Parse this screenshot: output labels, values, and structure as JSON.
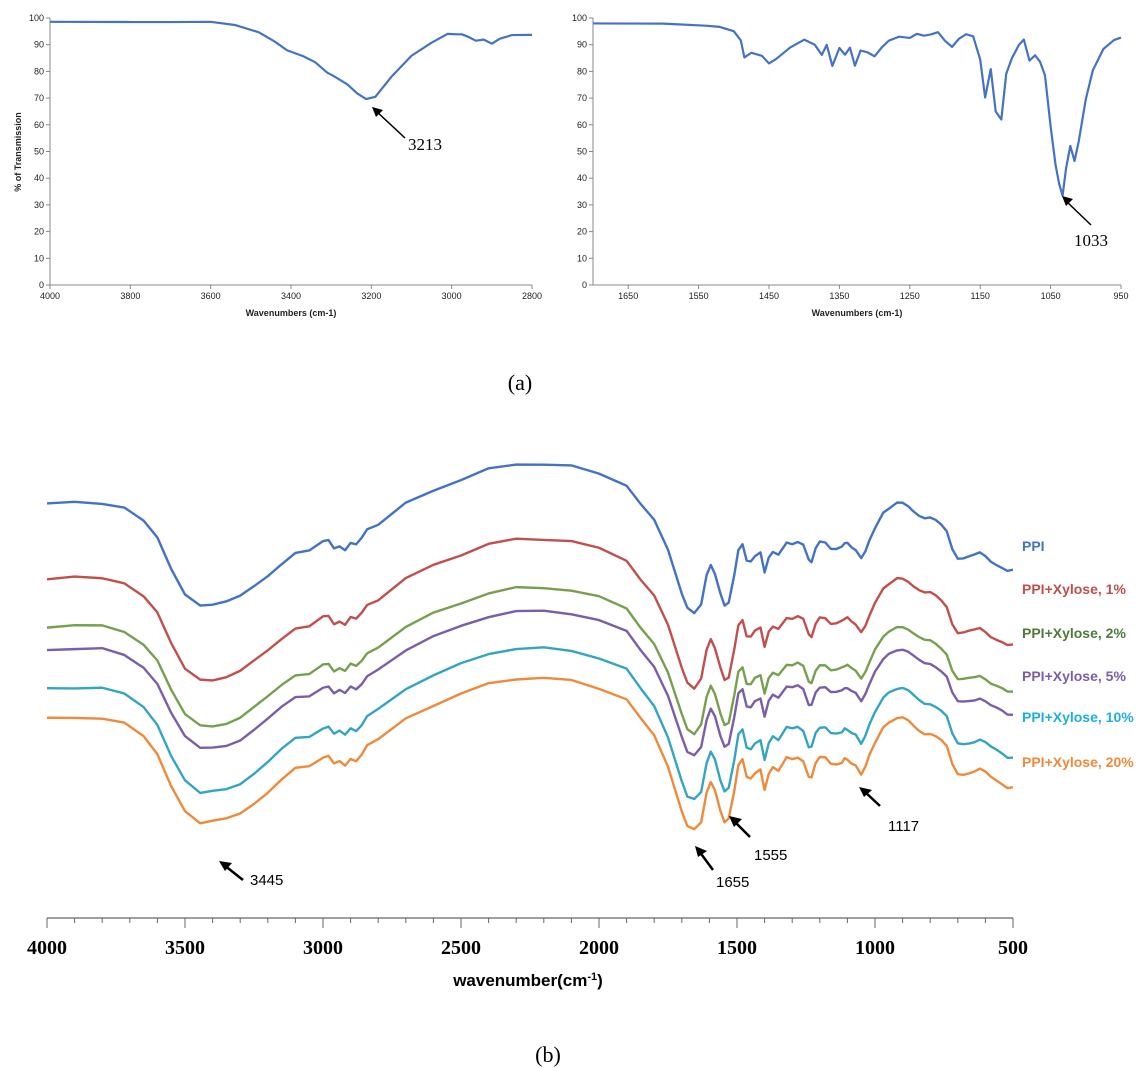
{
  "caption_a": "(a)",
  "caption_b": "(b)",
  "chart_data": [
    {
      "type": "line",
      "ylabel": "% of Transmission",
      "xlabel": "Wavenumbers (cm-1)",
      "xlim": [
        4000,
        2800
      ],
      "ylim": [
        0,
        100
      ],
      "x_ticks": [
        "4000",
        "3800",
        "3600",
        "3400",
        "3200",
        "3000",
        "2800"
      ],
      "y_ticks": [
        "0",
        "10",
        "20",
        "30",
        "40",
        "50",
        "60",
        "70",
        "80",
        "90",
        "100"
      ],
      "color": "#4472c4",
      "series": [
        {
          "x": [
            4000,
            3800,
            3700,
            3600,
            3540,
            3480,
            3440,
            3410,
            3370,
            3340,
            3310,
            3290,
            3260,
            3235,
            3213,
            3190,
            3150,
            3100,
            3050,
            3010,
            2990,
            2975,
            2960,
            2940,
            2920,
            2900,
            2880,
            2850,
            2800
          ],
          "y": [
            98.5,
            98.7,
            98.6,
            98.5,
            97.5,
            95,
            91.5,
            88,
            85.5,
            84,
            79.5,
            78.5,
            75,
            72,
            69.5,
            71,
            78,
            86,
            91,
            93.5,
            94,
            93.5,
            92.5,
            91.5,
            91.8,
            90.8,
            92.5,
            94,
            94
          ]
        }
      ],
      "annotations": [
        {
          "label": "3213",
          "x": 3213,
          "y": 69.5
        }
      ]
    },
    {
      "type": "line",
      "ylabel": "",
      "xlabel": "Wavenumbers (cm-1)",
      "xlim": [
        1700,
        950
      ],
      "ylim": [
        0,
        100
      ],
      "x_ticks": [
        "1650",
        "1550",
        "1450",
        "1350",
        "1250",
        "1150",
        "1050",
        "950"
      ],
      "y_ticks": [
        "0",
        "10",
        "20",
        "30",
        "40",
        "50",
        "60",
        "70",
        "80",
        "90",
        "100"
      ],
      "color": "#4472c4",
      "series": [
        {
          "x": [
            1700,
            1600,
            1540,
            1520,
            1500,
            1490,
            1485,
            1475,
            1460,
            1450,
            1440,
            1420,
            1400,
            1385,
            1375,
            1368,
            1360,
            1350,
            1342,
            1335,
            1328,
            1320,
            1310,
            1300,
            1290,
            1280,
            1265,
            1250,
            1240,
            1230,
            1220,
            1210,
            1200,
            1190,
            1180,
            1170,
            1160,
            1150,
            1143,
            1135,
            1128,
            1120,
            1113,
            1105,
            1095,
            1088,
            1080,
            1072,
            1065,
            1058,
            1050,
            1043,
            1038,
            1033,
            1028,
            1022,
            1016,
            1010,
            1000,
            990,
            975,
            960,
            950
          ],
          "y": [
            98,
            97.8,
            97.5,
            96.5,
            95,
            92,
            85,
            87,
            86,
            83,
            85,
            89,
            92,
            90,
            86,
            90,
            82,
            89,
            86,
            89,
            82,
            88,
            87,
            86,
            89,
            91,
            93,
            93,
            94,
            93,
            94,
            94.5,
            92,
            89,
            92,
            94,
            93,
            85,
            70,
            81,
            65,
            62,
            79,
            85,
            90,
            92,
            84,
            86,
            84,
            78,
            60,
            45,
            38,
            34,
            44,
            52,
            47,
            54,
            70,
            80,
            88,
            92,
            93
          ]
        }
      ],
      "annotations": [
        {
          "label": "1033",
          "x": 1033,
          "y": 34
        }
      ]
    },
    {
      "type": "line",
      "xlabel": "wavenumber(cm-1)",
      "xlim": [
        4000,
        500
      ],
      "x_ticks": [
        "4000",
        "3500",
        "3000",
        "2500",
        "2000",
        "1500",
        "1000",
        "500"
      ],
      "series": [
        {
          "name": "PPI",
          "color": "#4472c4",
          "offset": 0
        },
        {
          "name": "PPI+Xylose, 1%",
          "color": "#c0504d",
          "offset": 1
        },
        {
          "name": "PPI+Xylose, 2%",
          "color": "#76a04f",
          "offset": 2
        },
        {
          "name": "PPI+Xylose, 5%",
          "color": "#7a5ea8",
          "offset": 3
        },
        {
          "name": "PPI+Xylose, 10%",
          "color": "#35a4c3",
          "offset": 4
        },
        {
          "name": "PPI+Xylose, 20%",
          "color": "#ee8a3c",
          "offset": 5
        }
      ],
      "legend_colors": [
        "#4472c4",
        "#c0504d",
        "#4f7a3a",
        "#7a5ea8",
        "#1faee0",
        "#ee8a3c"
      ],
      "shape": {
        "x": [
          4000,
          3900,
          3800,
          3720,
          3650,
          3600,
          3550,
          3500,
          3445,
          3400,
          3350,
          3300,
          3250,
          3200,
          3150,
          3100,
          3050,
          3000,
          2980,
          2960,
          2940,
          2920,
          2900,
          2880,
          2860,
          2840,
          2800,
          2700,
          2600,
          2500,
          2400,
          2300,
          2200,
          2100,
          2000,
          1900,
          1850,
          1800,
          1750,
          1700,
          1680,
          1655,
          1630,
          1610,
          1595,
          1580,
          1560,
          1545,
          1530,
          1510,
          1495,
          1480,
          1465,
          1450,
          1435,
          1415,
          1400,
          1385,
          1370,
          1350,
          1320,
          1300,
          1280,
          1260,
          1240,
          1230,
          1215,
          1200,
          1180,
          1160,
          1140,
          1120,
          1110,
          1100,
          1085,
          1070,
          1050,
          1035,
          1020,
          1000,
          970,
          950,
          920,
          900,
          880,
          860,
          840,
          820,
          800,
          780,
          760,
          740,
          720,
          700,
          680,
          660,
          640,
          620,
          600,
          580,
          560,
          540,
          520,
          500
        ],
        "y": [
          0,
          0,
          0,
          0.5,
          1.5,
          3,
          5.5,
          7.5,
          8.5,
          8.5,
          8.2,
          7.8,
          7,
          6,
          5,
          4.2,
          4,
          3.2,
          3.2,
          3.8,
          3.5,
          3.9,
          3.3,
          3.4,
          3,
          2.3,
          1.8,
          0,
          -1,
          -2,
          -2.8,
          -3.2,
          -3.3,
          -3,
          -2.5,
          -1.5,
          0,
          1.5,
          4,
          7.5,
          8.8,
          9.2,
          8.5,
          6,
          5.2,
          5.8,
          7.5,
          8.5,
          8.2,
          6,
          3.8,
          3.5,
          4.8,
          5,
          4.4,
          4.2,
          5.8,
          4.5,
          4,
          4.2,
          3.2,
          3.4,
          3.2,
          3.4,
          4.8,
          4.8,
          3.8,
          3.2,
          3.3,
          3.8,
          3.7,
          3.6,
          3.3,
          3.4,
          3.6,
          3.9,
          4.5,
          4,
          3,
          2,
          0.8,
          0.5,
          0.1,
          0,
          0.2,
          0.7,
          1,
          1.2,
          1.3,
          1.5,
          1.8,
          2.4,
          3.8,
          4.5,
          4.6,
          4.5,
          4.3,
          4.2,
          4.5,
          4.8,
          5.1,
          5.4,
          5.6,
          5.6
        ]
      },
      "annotations": [
        {
          "label": "3445",
          "x": 3445
        },
        {
          "label": "1655",
          "x": 1655
        },
        {
          "label": "1555",
          "x": 1555
        },
        {
          "label": "1117",
          "x": 1117
        }
      ]
    }
  ]
}
